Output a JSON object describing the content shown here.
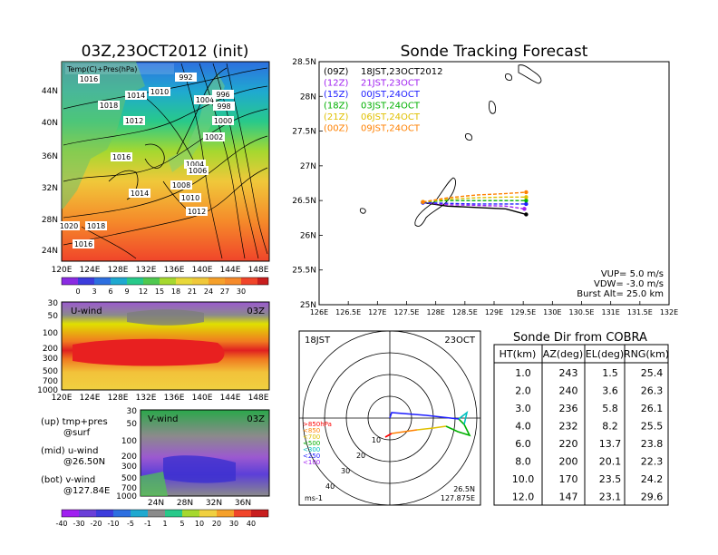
{
  "left_map": {
    "title": "03Z,23OCT2012 (init)",
    "label": "Temp(C)+Pres(hPa)",
    "y_ticks": [
      "44N",
      "40N",
      "36N",
      "32N",
      "28N",
      "24N"
    ],
    "x_ticks": [
      "120E",
      "124E",
      "128E",
      "132E",
      "136E",
      "140E",
      "144E",
      "148E"
    ],
    "isobar_labels": [
      "1016",
      "1010",
      "992",
      "1018",
      "1014",
      "1004",
      "996",
      "998",
      "1012",
      "1000",
      "1002",
      "1016",
      "1004",
      "1006",
      "1008",
      "1014",
      "1010",
      "1012",
      "1018",
      "1016",
      "1020"
    ],
    "colorbar_ticks": [
      "0",
      "3",
      "6",
      "9",
      "12",
      "15",
      "18",
      "21",
      "24",
      "27",
      "30"
    ]
  },
  "u_wind": {
    "title": "U-wind",
    "time": "03Z",
    "y_ticks": [
      "30",
      "50",
      "100",
      "200",
      "300",
      "500",
      "700",
      "1000"
    ],
    "x_ticks": [
      "120E",
      "124E",
      "128E",
      "132E",
      "136E",
      "140E",
      "144E",
      "148E"
    ]
  },
  "v_wind": {
    "title": "V-wind",
    "time": "03Z",
    "y_ticks": [
      "30",
      "50",
      "100",
      "200",
      "300",
      "500",
      "700",
      "1000"
    ],
    "x_ticks": [
      "24N",
      "28N",
      "32N",
      "36N"
    ],
    "colorbar_ticks": [
      "-40",
      "-30",
      "-20",
      "-10",
      "-5",
      "-1",
      "1",
      "5",
      "10",
      "20",
      "30",
      "40"
    ]
  },
  "notes": {
    "up": "(up) tmp+pres",
    "up2": "@surf",
    "mid": "(mid) u-wind",
    "mid2": "@26.50N",
    "bot": "(bot) v-wind",
    "bot2": "@127.84E"
  },
  "colors": {
    "c09": "#000000",
    "c12": "#a020f0",
    "c15": "#2020ff",
    "c18": "#00b000",
    "c21": "#e0c000",
    "c00": "#ff8000"
  },
  "tracking": {
    "title": "Sonde Tracking Forecast",
    "legend": [
      {
        "code": "(09Z)",
        "time": "18JST,23OCT2012"
      },
      {
        "code": "(12Z)",
        "time": "21JST,23OCT"
      },
      {
        "code": "(15Z)",
        "time": "00JST,24OCT"
      },
      {
        "code": "(18Z)",
        "time": "03JST,24OCT"
      },
      {
        "code": "(21Z)",
        "time": "06JST,24OCT"
      },
      {
        "code": "(00Z)",
        "time": "09JST,24OCT"
      }
    ],
    "y_ticks": [
      "28.5N",
      "28N",
      "27.5N",
      "27N",
      "26.5N",
      "26N",
      "25.5N",
      "25N"
    ],
    "x_ticks": [
      "126E",
      "126.5E",
      "127E",
      "127.5E",
      "128E",
      "128.5E",
      "129E",
      "129.5E",
      "130E",
      "130.5E",
      "131E",
      "131.5E",
      "132E"
    ],
    "vup": "VUP= 5.0 m/s",
    "vdw": "VDW= -3.0 m/s",
    "burst": "Burst Alt= 25.0 km"
  },
  "polar": {
    "time": "18JST",
    "date": "23OCT",
    "ring_labels": [
      "10",
      "20",
      "30",
      "40"
    ],
    "legend": [
      ">850hPa",
      "<850",
      "<700",
      "<500",
      "<300",
      "<250",
      "<100"
    ],
    "legend_colors": [
      "#ff0000",
      "#ff8000",
      "#e0c000",
      "#00b000",
      "#00c0c0",
      "#2020ff",
      "#a020f0"
    ],
    "unit": "ms-1",
    "lat": "26.5N",
    "lon": "127.875E"
  },
  "sonde_table": {
    "title": "Sonde Dir from COBRA",
    "headers": [
      "HT(km)",
      "AZ(deg)",
      "EL(deg)",
      "RNG(km)"
    ],
    "rows": [
      [
        "1.0",
        "243",
        "1.5",
        "25.4"
      ],
      [
        "2.0",
        "240",
        "3.6",
        "26.3"
      ],
      [
        "3.0",
        "236",
        "5.8",
        "26.1"
      ],
      [
        "4.0",
        "232",
        "8.2",
        "25.5"
      ],
      [
        "6.0",
        "220",
        "13.7",
        "23.8"
      ],
      [
        "8.0",
        "200",
        "20.1",
        "22.3"
      ],
      [
        "10.0",
        "170",
        "23.5",
        "24.2"
      ],
      [
        "12.0",
        "147",
        "23.1",
        "29.6"
      ]
    ]
  },
  "chart_data": [
    {
      "type": "line",
      "title": "Sonde Tracking Forecast",
      "xlim": [
        126,
        132
      ],
      "ylim": [
        25,
        28.5
      ],
      "series": [
        {
          "name": "(09Z) 18JST,23OCT2012",
          "x": [
            127.78,
            128.2,
            128.7,
            129.2,
            129.55
          ],
          "y": [
            26.47,
            26.42,
            26.4,
            26.38,
            26.3
          ]
        },
        {
          "name": "(12Z) 21JST,23OCT",
          "x": [
            127.78,
            128.2,
            128.7,
            129.2,
            129.52
          ],
          "y": [
            26.47,
            26.44,
            26.43,
            26.42,
            26.38
          ]
        },
        {
          "name": "(15Z) 00JST,24OCT",
          "x": [
            127.78,
            128.2,
            128.7,
            129.2,
            129.55
          ],
          "y": [
            26.47,
            26.46,
            26.45,
            26.45,
            26.45
          ]
        },
        {
          "name": "(18Z) 03JST,24OCT",
          "x": [
            127.78,
            128.2,
            128.7,
            129.2,
            129.55
          ],
          "y": [
            26.48,
            26.5,
            26.5,
            26.5,
            26.5
          ]
        },
        {
          "name": "(21Z) 06JST,24OCT",
          "x": [
            127.78,
            128.2,
            128.7,
            129.2,
            129.55
          ],
          "y": [
            26.48,
            26.52,
            26.54,
            26.55,
            26.55
          ]
        },
        {
          "name": "(00Z) 09JST,24OCT",
          "x": [
            127.78,
            128.2,
            128.7,
            129.2,
            129.55
          ],
          "y": [
            26.48,
            26.54,
            26.58,
            26.6,
            26.62
          ]
        }
      ]
    }
  ]
}
